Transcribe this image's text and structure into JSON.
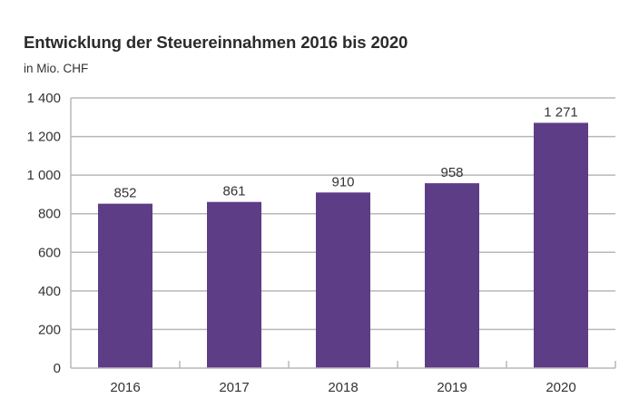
{
  "chart_data": {
    "type": "bar",
    "title": "Entwicklung der Steuereinnahmen 2016 bis 2020",
    "subtitle": "in Mio. CHF",
    "xlabel": "",
    "ylabel": "",
    "categories": [
      "2016",
      "2017",
      "2018",
      "2019",
      "2020"
    ],
    "values": [
      852,
      861,
      910,
      958,
      1271
    ],
    "data_labels": [
      "852",
      "861",
      "910",
      "958",
      "1 271"
    ],
    "ylim": [
      0,
      1400
    ],
    "yticks": [
      0,
      200,
      400,
      600,
      800,
      1000,
      1200,
      1400
    ],
    "ytick_labels": [
      "0",
      "200",
      "400",
      "600",
      "800",
      "1 000",
      "1 200",
      "1 400"
    ],
    "grid": true,
    "legend": "none",
    "colors": {
      "bar": "#5e3d87",
      "grid": "#b8b8b8",
      "text": "#333333"
    }
  }
}
